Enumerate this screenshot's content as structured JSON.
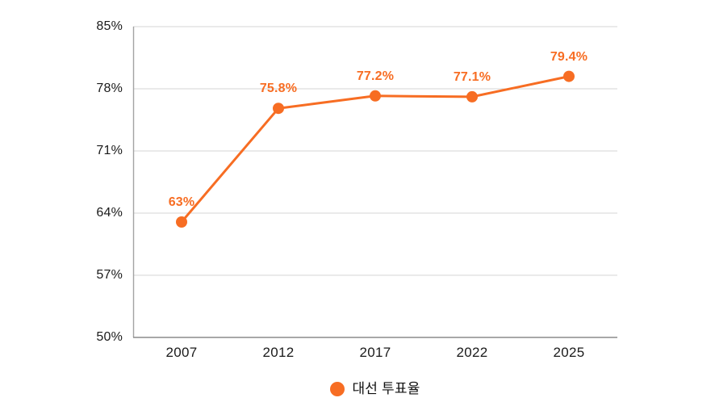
{
  "chart_data": {
    "type": "line",
    "title": "",
    "categories": [
      "2007",
      "2012",
      "2017",
      "2022",
      "2025"
    ],
    "series": [
      {
        "name": "대선 투표율",
        "values": [
          63,
          75.8,
          77.2,
          77.1,
          79.4
        ],
        "data_labels": [
          "63%",
          "75.8%",
          "77.2%",
          "77.1%",
          "79.4%"
        ]
      }
    ],
    "ylim": [
      50,
      85
    ],
    "yticks": [
      85,
      78,
      71,
      64,
      57,
      50
    ],
    "ytick_labels": [
      "85%",
      "78%",
      "71%",
      "64%",
      "57%",
      "50%"
    ],
    "grid": true,
    "legend_position": "bottom",
    "colors": {
      "series": "#f76d23",
      "tick_text": "#1a1a1a",
      "grid_line": "#d4d4d4",
      "y_axis_line": "#a3a3a3",
      "x_axis_line": "#8c8c8c",
      "background": "#ffffff"
    }
  }
}
